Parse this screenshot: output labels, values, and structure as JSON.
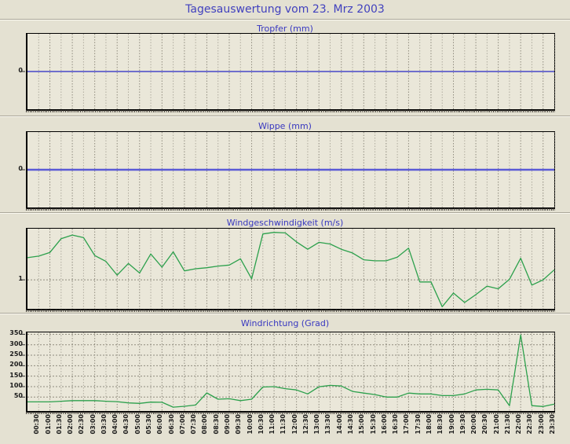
{
  "page": {
    "title": "Tagesauswertung vom 23. Mrz 2003"
  },
  "colors": {
    "page_bg": "#E4E1D2",
    "plot_bg": "#EAE7D9",
    "title_blue": "#4141BE",
    "chart_title_blue": "#3838C0",
    "grid_half_hour": "#AFAB9E",
    "grid_hour": "#8F8B7E",
    "axis_text": "#1A1A1A",
    "tropfer_line": "#4646C8",
    "wippe_line": "#5B5BD6",
    "wind_line": "#2CA04C"
  },
  "x_axis": {
    "first_data_point": "00:00",
    "interval": "30 min",
    "tick_labels": [
      "00:30",
      "01:00",
      "01:30",
      "02:00",
      "02:30",
      "03:00",
      "03:30",
      "04:00",
      "04:30",
      "05:00",
      "05:30",
      "06:00",
      "06:30",
      "07:00",
      "07:30",
      "08:00",
      "08:30",
      "09:00",
      "09:30",
      "10:00",
      "10:30",
      "11:00",
      "11:30",
      "12:00",
      "12:30",
      "13:00",
      "13:30",
      "14:00",
      "14:30",
      "15:00",
      "15:30",
      "16:00",
      "16:30",
      "17:00",
      "17:30",
      "18:00",
      "18:30",
      "19:00",
      "19:30",
      "20:00",
      "20:30",
      "21:00",
      "21:30",
      "22:00",
      "22:30",
      "23:00",
      "23:30"
    ]
  },
  "chart_data": [
    {
      "type": "line",
      "title": "Tropfer (mm)",
      "ylabels": [
        0
      ],
      "ylim": [
        -1.5,
        1.5
      ],
      "grid_y": [],
      "line_color": "#4646C8",
      "line_width": 1.5,
      "show_x_labels": false,
      "values": [
        0,
        0,
        0,
        0,
        0,
        0,
        0,
        0,
        0,
        0,
        0,
        0,
        0,
        0,
        0,
        0,
        0,
        0,
        0,
        0,
        0,
        0,
        0,
        0,
        0,
        0,
        0,
        0,
        0,
        0,
        0,
        0,
        0,
        0,
        0,
        0,
        0,
        0,
        0,
        0,
        0,
        0,
        0,
        0,
        0,
        0,
        0,
        0
      ]
    },
    {
      "type": "line",
      "title": "Wippe (mm)",
      "ylabels": [
        0
      ],
      "ylim": [
        -1.5,
        1.5
      ],
      "grid_y": [],
      "line_color": "#5B5BD6",
      "line_width": 2.5,
      "show_x_labels": false,
      "values": [
        0,
        0,
        0,
        0,
        0,
        0,
        0,
        0,
        0,
        0,
        0,
        0,
        0,
        0,
        0,
        0,
        0,
        0,
        0,
        0,
        0,
        0,
        0,
        0,
        0,
        0,
        0,
        0,
        0,
        0,
        0,
        0,
        0,
        0,
        0,
        0,
        0,
        0,
        0,
        0,
        0,
        0,
        0,
        0,
        0,
        0,
        0,
        0
      ]
    },
    {
      "type": "line",
      "title": "Windgeschwindigkeit (m/s)",
      "ylabels": [
        1
      ],
      "ylim": [
        0.45,
        1.97
      ],
      "grid_y": [
        1
      ],
      "line_color": "#2CA04C",
      "line_width": 1.3,
      "show_x_labels": false,
      "values": [
        1.42,
        1.45,
        1.52,
        1.78,
        1.85,
        1.8,
        1.46,
        1.35,
        1.09,
        1.31,
        1.13,
        1.49,
        1.24,
        1.53,
        1.17,
        1.21,
        1.23,
        1.26,
        1.28,
        1.4,
        1.02,
        1.87,
        1.9,
        1.89,
        1.72,
        1.58,
        1.71,
        1.68,
        1.58,
        1.51,
        1.38,
        1.36,
        1.36,
        1.43,
        1.6,
        0.96,
        0.96,
        0.49,
        0.75,
        0.57,
        0.72,
        0.88,
        0.83,
        1.01,
        1.41,
        0.9,
        1.0,
        1.19
      ]
    },
    {
      "type": "line",
      "title": "Windrichtung (Grad)",
      "ylabels": [
        50,
        100,
        150,
        200,
        250,
        300,
        350
      ],
      "ylim": [
        -16.5,
        359
      ],
      "grid_y": [
        50,
        100,
        150,
        200,
        250,
        300,
        350
      ],
      "line_color": "#2CA04C",
      "line_width": 1.3,
      "show_x_labels": true,
      "values": [
        27,
        27,
        27,
        30,
        33,
        33,
        33,
        30,
        28,
        22,
        20,
        26,
        25,
        2,
        6,
        12,
        70,
        40,
        42,
        33,
        40,
        98,
        100,
        90,
        84,
        65,
        99,
        106,
        103,
        77,
        69,
        62,
        50,
        50,
        69,
        65,
        65,
        57,
        57,
        65,
        84,
        87,
        84,
        9,
        347,
        9,
        5,
        16
      ]
    }
  ]
}
